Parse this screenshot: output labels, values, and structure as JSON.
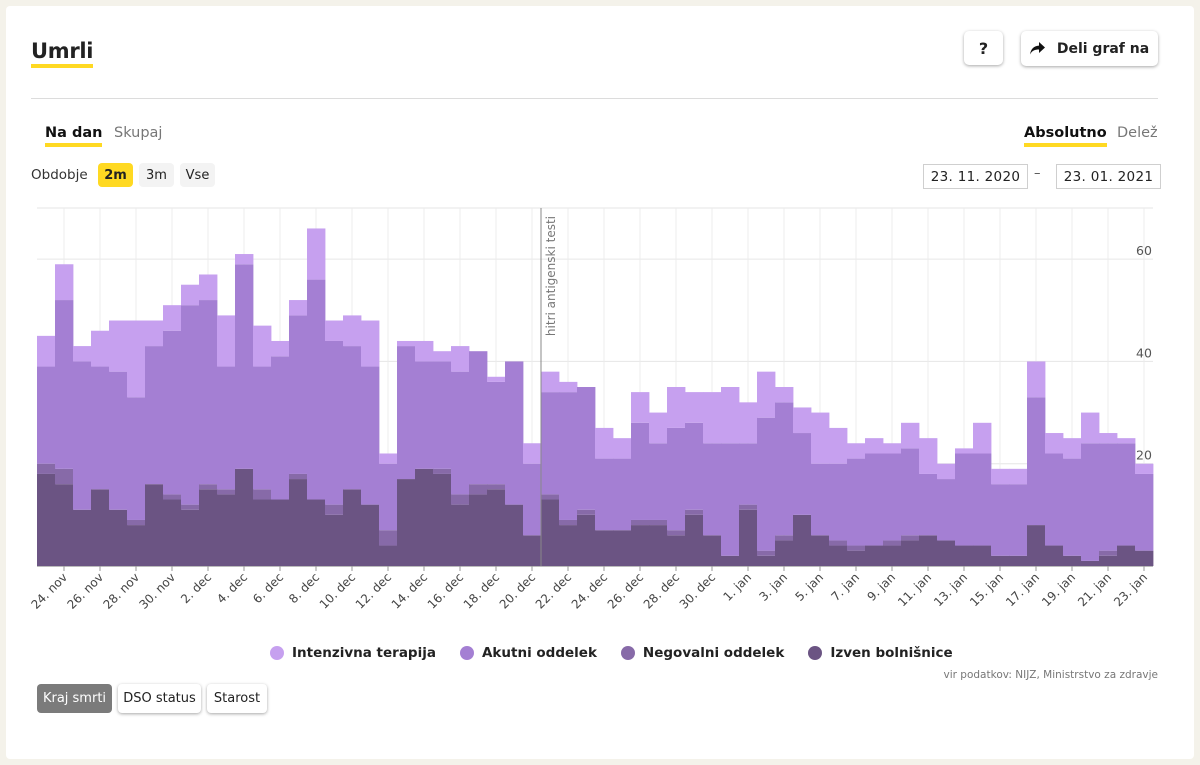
{
  "header": {
    "title": "Umrli",
    "help_label": "?",
    "share_label": "Deli graf na"
  },
  "view_tabs": {
    "per_day": "Na dan",
    "cumulative": "Skupaj"
  },
  "mode_tabs": {
    "absolute": "Absolutno",
    "share": "Delež"
  },
  "period": {
    "label": "Obdobje",
    "options": [
      "2m",
      "3m",
      "Vse"
    ],
    "selected": "2m"
  },
  "date_range": {
    "from": "23. 11. 2020",
    "separator": "–",
    "to": "23. 01. 2021"
  },
  "legend": [
    {
      "label": "Intenzivna terapija",
      "color": "#c6a0ef",
      "icon": "circle-dot-icon"
    },
    {
      "label": "Akutni oddelek",
      "color": "#a47fd3",
      "icon": "circle-dot-icon"
    },
    {
      "label": "Negovalni oddelek",
      "color": "#876aa8",
      "icon": "circle-dot-icon"
    },
    {
      "label": "Izven bolnišnice",
      "color": "#6b5483",
      "icon": "circle-dot-icon"
    }
  ],
  "source": "vir podatkov: NIJZ, Ministrstvo za zdravje",
  "bottom_tabs": [
    "Kraj smrti",
    "DSO status",
    "Starost"
  ],
  "share_icon": "share-arrow-icon",
  "chart_data": {
    "type": "bar",
    "stacked": true,
    "ylim": [
      0,
      70
    ],
    "y_ticks": [
      20,
      40,
      60
    ],
    "x_tick_labels": [
      "24. nov",
      "26. nov",
      "28. nov",
      "30. nov",
      "2. dec",
      "4. dec",
      "6. dec",
      "8. dec",
      "10. dec",
      "12. dec",
      "14. dec",
      "16. dec",
      "18. dec",
      "20. dec",
      "22. dec",
      "24. dec",
      "26. dec",
      "28. dec",
      "30. dec",
      "1. jan",
      "3. jan",
      "5. jan",
      "7. jan",
      "9. jan",
      "11. jan",
      "13. jan",
      "15. jan",
      "17. jan",
      "19. jan",
      "21. jan",
      "23. jan"
    ],
    "annotation": {
      "label": "hitri antigenski testi",
      "date": "21. dec"
    },
    "categories": [
      "23. nov",
      "24. nov",
      "25. nov",
      "26. nov",
      "27. nov",
      "28. nov",
      "29. nov",
      "30. nov",
      "1. dec",
      "2. dec",
      "3. dec",
      "4. dec",
      "5. dec",
      "6. dec",
      "7. dec",
      "8. dec",
      "9. dec",
      "10. dec",
      "11. dec",
      "12. dec",
      "13. dec",
      "14. dec",
      "15. dec",
      "16. dec",
      "17. dec",
      "18. dec",
      "19. dec",
      "20. dec",
      "21. dec",
      "22. dec",
      "23. dec",
      "24. dec",
      "25. dec",
      "26. dec",
      "27. dec",
      "28. dec",
      "29. dec",
      "30. dec",
      "31. dec",
      "1. jan",
      "2. jan",
      "3. jan",
      "4. jan",
      "5. jan",
      "6. jan",
      "7. jan",
      "8. jan",
      "9. jan",
      "10. jan",
      "11. jan",
      "12. jan",
      "13. jan",
      "14. jan",
      "15. jan",
      "16. jan",
      "17. jan",
      "18. jan",
      "19. jan",
      "20. jan",
      "21. jan",
      "22. jan",
      "23. jan"
    ],
    "series": [
      {
        "name": "Izven bolnišnice",
        "values": [
          18,
          16,
          11,
          15,
          11,
          8,
          16,
          13,
          11,
          15,
          14,
          19,
          13,
          13,
          17,
          13,
          10,
          15,
          12,
          4,
          17,
          19,
          18,
          12,
          14,
          15,
          12,
          6,
          13,
          8,
          10,
          7,
          7,
          8,
          8,
          6,
          10,
          6,
          2,
          11,
          2,
          5,
          10,
          6,
          4,
          3,
          4,
          4,
          5,
          6,
          5,
          4,
          4,
          2,
          2,
          8,
          4,
          2,
          1,
          2,
          4,
          3
        ]
      },
      {
        "name": "Negovalni oddelek",
        "values": [
          2,
          3,
          0,
          0,
          0,
          1,
          0,
          1,
          1,
          1,
          1,
          0,
          2,
          0,
          1,
          0,
          2,
          0,
          0,
          3,
          0,
          0,
          1,
          2,
          2,
          1,
          0,
          0,
          1,
          1,
          1,
          0,
          0,
          1,
          1,
          1,
          1,
          0,
          0,
          1,
          1,
          1,
          0,
          0,
          1,
          1,
          0,
          1,
          1,
          0,
          0,
          0,
          0,
          0,
          0,
          0,
          0,
          0,
          0,
          1,
          0,
          0
        ]
      },
      {
        "name": "Akutni oddelek",
        "values": [
          19,
          33,
          29,
          24,
          27,
          24,
          27,
          32,
          39,
          36,
          24,
          40,
          24,
          28,
          31,
          43,
          32,
          28,
          27,
          13,
          26,
          21,
          21,
          24,
          26,
          20,
          28,
          14,
          20,
          25,
          24,
          14,
          14,
          19,
          15,
          20,
          17,
          18,
          22,
          12,
          26,
          26,
          16,
          14,
          15,
          17,
          18,
          17,
          17,
          12,
          12,
          18,
          18,
          14,
          14,
          25,
          18,
          19,
          23,
          21,
          20,
          15
        ]
      },
      {
        "name": "Intenzivna terapija",
        "values": [
          6,
          7,
          3,
          7,
          10,
          15,
          5,
          5,
          4,
          5,
          10,
          2,
          8,
          3,
          3,
          10,
          4,
          6,
          9,
          2,
          1,
          4,
          2,
          5,
          0,
          1,
          0,
          4,
          4,
          2,
          0,
          6,
          4,
          6,
          6,
          8,
          6,
          10,
          11,
          8,
          9,
          3,
          5,
          10,
          7,
          3,
          3,
          2,
          5,
          7,
          3,
          1,
          6,
          3,
          3,
          7,
          4,
          4,
          6,
          2,
          1,
          2
        ]
      }
    ]
  }
}
